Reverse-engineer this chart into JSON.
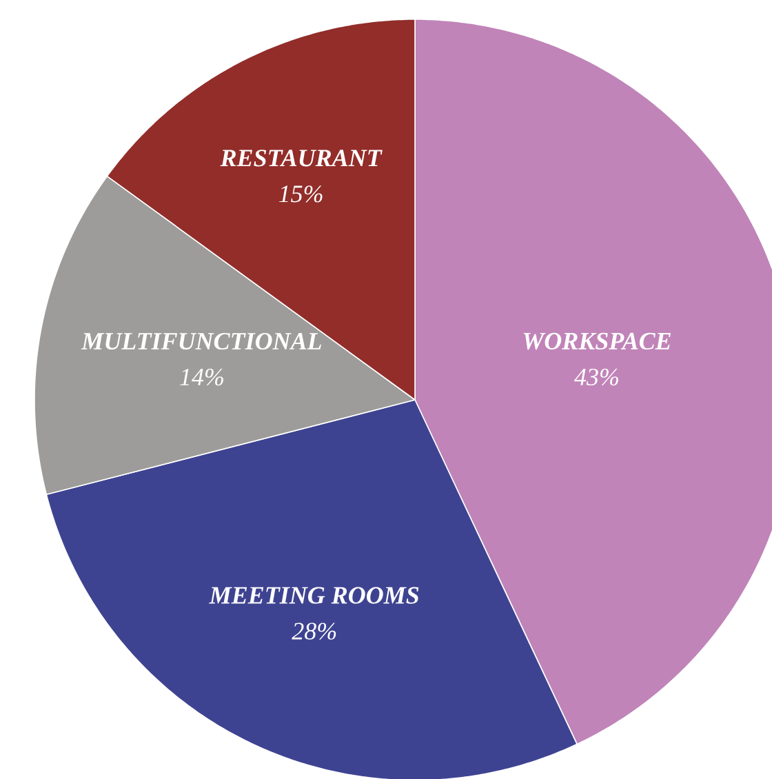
{
  "chart_data": {
    "type": "pie",
    "categories": [
      "WORKSPACE",
      "MEETING ROOMS",
      "MULTIFUNCTIONAL",
      "RESTAURANT"
    ],
    "values": [
      43,
      28,
      14,
      15
    ],
    "colors": [
      "#c084b8",
      "#3e4391",
      "#9d9c9a",
      "#922d2a"
    ],
    "value_labels": [
      "43%",
      "28%",
      "14%",
      "15%"
    ]
  }
}
